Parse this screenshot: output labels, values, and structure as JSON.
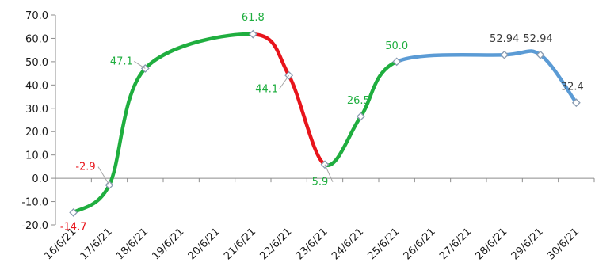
{
  "chart_data": {
    "type": "line",
    "title": "",
    "xlabel": "",
    "ylabel": "",
    "ylim": [
      -20,
      70
    ],
    "yticks": [
      -20,
      -10,
      0,
      10,
      20,
      30,
      40,
      50,
      60,
      70
    ],
    "ytick_labels": [
      "-20.0",
      "-10.0",
      "0.0",
      "10.0",
      "20.0",
      "30.0",
      "40.0",
      "50.0",
      "60.0",
      "70.0"
    ],
    "categories": [
      "16/6/21",
      "17/6/21",
      "18/6/21",
      "19/6/21",
      "20/6/21",
      "21/6/21",
      "22/6/21",
      "23/6/21",
      "24/6/21",
      "25/6/21",
      "26/6/21",
      "27/6/21",
      "28/6/21",
      "29/6/21",
      "30/6/21"
    ],
    "series": [
      {
        "values": [
          -14.7,
          -2.9,
          47.1,
          null,
          null,
          61.8,
          44.1,
          5.9,
          26.5,
          50.0,
          null,
          null,
          52.94,
          52.94,
          32.4
        ],
        "point_labels": [
          "-14.7",
          "-2.9",
          "47.1",
          "",
          "",
          "61.8",
          "44.1",
          "5.9",
          "26.5",
          "50.0",
          "",
          "",
          "52.94",
          "52.94",
          "32.4"
        ]
      }
    ],
    "segment_colors": {
      "green": "#1fae3f",
      "red": "#e8141b",
      "blue": "#5b9bd5",
      "green_label": "#1fae3f",
      "red_label": "#e8141b",
      "dark_label": "#3a3a3a"
    },
    "grid": false,
    "legend": "none"
  }
}
